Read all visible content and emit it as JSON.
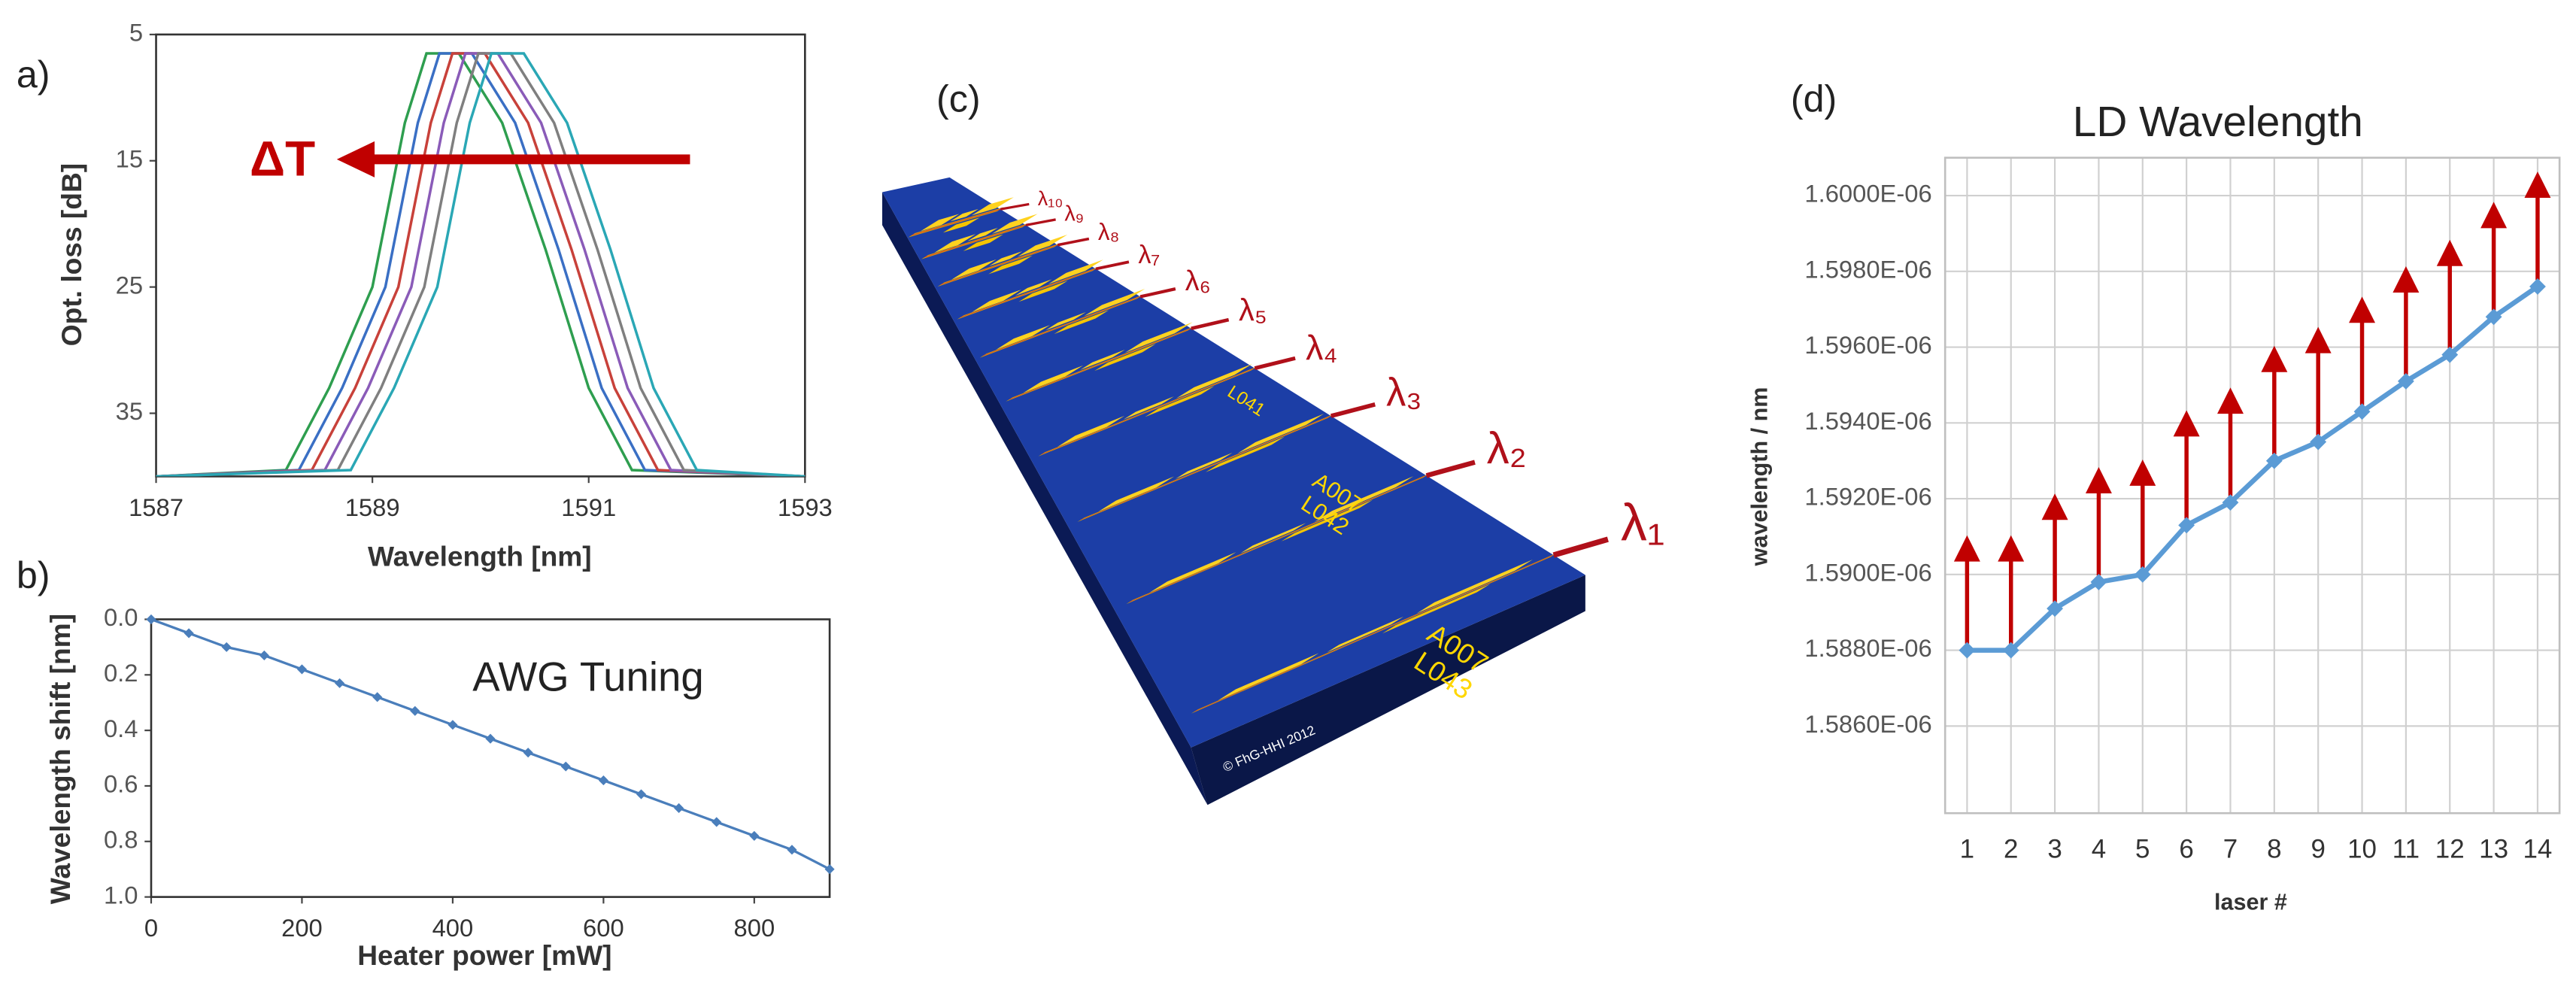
{
  "chart_data": [
    {
      "type": "line",
      "panel_label": "a)",
      "xlabel": "Wavelength [nm]",
      "ylabel": "Opt. loss [dB]",
      "annotation": "ΔT",
      "xlim": [
        1587,
        1593
      ],
      "xticks": [
        1587,
        1589,
        1591,
        1593
      ],
      "ylim": [
        5,
        40
      ],
      "yticks": [
        5,
        15,
        25,
        35
      ],
      "y_inverted": true,
      "grid": false,
      "series": [
        {
          "color": "#2e9e4f",
          "x": [
            1587,
            1588.2,
            1588.6,
            1589.0,
            1589.3,
            1589.5,
            1589.8,
            1590.2,
            1590.6,
            1591.0,
            1591.4,
            1593
          ],
          "values": [
            40,
            39.5,
            33,
            25,
            12,
            6.5,
            6.5,
            12,
            22,
            33,
            39.5,
            40
          ]
        },
        {
          "color": "#3a6fc4",
          "x": [
            1587,
            1588.32,
            1588.72,
            1589.12,
            1589.42,
            1589.62,
            1589.92,
            1590.32,
            1590.72,
            1591.12,
            1591.52,
            1593
          ],
          "values": [
            40,
            39.5,
            33,
            25,
            12,
            6.5,
            6.5,
            12,
            22,
            33,
            39.5,
            40
          ]
        },
        {
          "color": "#c8413a",
          "x": [
            1587,
            1588.44,
            1588.84,
            1589.24,
            1589.54,
            1589.74,
            1590.04,
            1590.44,
            1590.84,
            1591.24,
            1591.64,
            1593
          ],
          "values": [
            40,
            39.5,
            33,
            25,
            12,
            6.5,
            6.5,
            12,
            22,
            33,
            39.5,
            40
          ]
        },
        {
          "color": "#8a5bb8",
          "x": [
            1587,
            1588.56,
            1588.96,
            1589.36,
            1589.66,
            1589.86,
            1590.16,
            1590.56,
            1590.96,
            1591.36,
            1591.76,
            1593
          ],
          "values": [
            40,
            39.5,
            33,
            25,
            12,
            6.5,
            6.5,
            12,
            22,
            33,
            39.5,
            40
          ]
        },
        {
          "color": "#7f7f7f",
          "x": [
            1587,
            1588.68,
            1589.08,
            1589.48,
            1589.78,
            1589.98,
            1590.28,
            1590.68,
            1591.08,
            1591.48,
            1591.88,
            1593
          ],
          "values": [
            40,
            39.5,
            33,
            25,
            12,
            6.5,
            6.5,
            12,
            22,
            33,
            39.5,
            40
          ]
        },
        {
          "color": "#2aa7b5",
          "x": [
            1587,
            1588.8,
            1589.2,
            1589.6,
            1589.9,
            1590.1,
            1590.4,
            1590.8,
            1591.2,
            1591.6,
            1592.0,
            1593
          ],
          "values": [
            40,
            39.5,
            33,
            25,
            12,
            6.5,
            6.5,
            12,
            22,
            33,
            39.5,
            40
          ]
        }
      ]
    },
    {
      "type": "line",
      "panel_label": "b)",
      "title": "AWG Tuning",
      "xlabel": "Heater power [mW]",
      "ylabel": "Wavelength shift [nm]",
      "x": [
        0,
        50,
        100,
        150,
        200,
        250,
        300,
        350,
        400,
        450,
        500,
        550,
        600,
        650,
        700,
        750,
        800,
        850,
        900
      ],
      "xlim": [
        0,
        900
      ],
      "xticks": [
        0,
        200,
        400,
        600,
        800
      ],
      "ylim": [
        0,
        1
      ],
      "yticks": [
        {
          "value": 0,
          "label": "0.0"
        },
        0.2,
        0.4,
        0.6,
        0.8,
        {
          "value": 1,
          "label": "1.0"
        }
      ],
      "y_inverted": true,
      "grid": false,
      "marker": "diamond",
      "series": [
        {
          "color": "#4a7ebb",
          "values": [
            0,
            0.05,
            0.1,
            0.13,
            0.18,
            0.23,
            0.28,
            0.33,
            0.38,
            0.43,
            0.48,
            0.53,
            0.58,
            0.63,
            0.68,
            0.73,
            0.78,
            0.83,
            0.9
          ]
        }
      ]
    },
    {
      "type": "line",
      "panel_label": "(d)",
      "title": "LD Wavelength",
      "xlabel": "laser #",
      "ylabel": "wavelength / nm",
      "categories": [
        "1",
        "2",
        "3",
        "4",
        "5",
        "6",
        "7",
        "8",
        "9",
        "10",
        "11",
        "12",
        "13",
        "14"
      ],
      "ylim": [
        1.5837e-06,
        1.601e-06
      ],
      "yticks": [
        {
          "value": 1.586e-06,
          "label": "1.5860E-06"
        },
        {
          "value": 1.588e-06,
          "label": "1.5880E-06"
        },
        {
          "value": 1.59e-06,
          "label": "1.5900E-06"
        },
        {
          "value": 1.592e-06,
          "label": "1.5920E-06"
        },
        {
          "value": 1.594e-06,
          "label": "1.5940E-06"
        },
        {
          "value": 1.596e-06,
          "label": "1.5960E-06"
        },
        {
          "value": 1.598e-06,
          "label": "1.5980E-06"
        },
        {
          "value": 1.6e-06,
          "label": "1.6000E-06"
        }
      ],
      "y_inverted": false,
      "grid": true,
      "marker": "diamond",
      "series": [
        {
          "color": "#5b9bd5",
          "values": [
            1.588e-06,
            1.588e-06,
            1.5891e-06,
            1.5898e-06,
            1.59e-06,
            1.5913e-06,
            1.5919e-06,
            1.593e-06,
            1.5935e-06,
            1.5943e-06,
            1.5951e-06,
            1.5958e-06,
            1.5968e-06,
            1.5976e-06
          ]
        }
      ]
    }
  ],
  "photo": {
    "panel_label": "(c)",
    "wavelength_labels": [
      "λ₁",
      "λ₂",
      "λ₃",
      "λ₄",
      "λ₅",
      "λ₆",
      "λ₇",
      "λ₈",
      "λ₉",
      "λ₁₀"
    ],
    "chip_labels": [
      "A007",
      "L043",
      "A007",
      "L042",
      "L041"
    ],
    "copyright": "© FhG-HHI 2012"
  }
}
